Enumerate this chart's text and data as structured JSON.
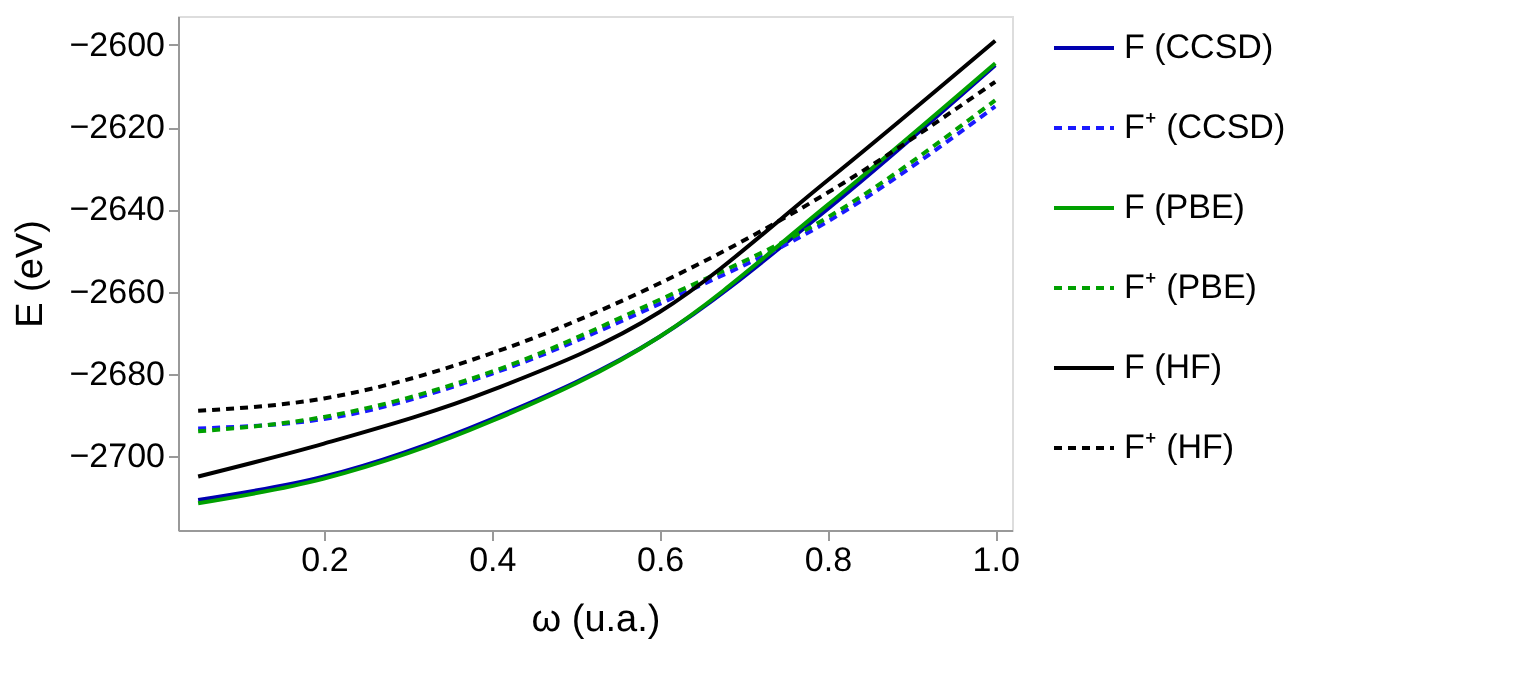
{
  "chart_data": {
    "type": "line",
    "xlabel": "ω (u.a.)",
    "ylabel": "E (eV)",
    "x": [
      0.05,
      0.2,
      0.4,
      0.6,
      0.8,
      1.0
    ],
    "xlim": [
      0.026,
      1.02
    ],
    "xticks": [
      {
        "value": 0.2,
        "label": "0.2"
      },
      {
        "value": 0.4,
        "label": "0.4"
      },
      {
        "value": 0.6,
        "label": "0.6"
      },
      {
        "value": 0.8,
        "label": "0.8"
      },
      {
        "value": 1.0,
        "label": "1.0"
      }
    ],
    "ylim": [
      -2718,
      -2593
    ],
    "yticks": [
      -2700,
      -2680,
      -2660,
      -2640,
      -2620,
      -2600
    ],
    "grid": false,
    "legend": "right",
    "marker": "none",
    "series": [
      {
        "name": "F (CCSD)",
        "color": "#0000b0",
        "line_style": "solid",
        "values": [
          -2710.7,
          -2705,
          -2691,
          -2671,
          -2640,
          -2605
        ]
      },
      {
        "name": "F⁺ (CCSD)",
        "color": "#1a1aff",
        "line_style": "dashed",
        "values": [
          -2693.3,
          -2691,
          -2680,
          -2663,
          -2643,
          -2615
        ]
      },
      {
        "name": "F (PBE)",
        "color": "#00a000",
        "line_style": "solid",
        "values": [
          -2711.5,
          -2705.5,
          -2691.5,
          -2671,
          -2639,
          -2604.5
        ]
      },
      {
        "name": "F⁺ (PBE)",
        "color": "#00a000",
        "line_style": "dashed",
        "values": [
          -2694,
          -2690.5,
          -2679.5,
          -2662,
          -2642,
          -2613.5
        ]
      },
      {
        "name": "F (HF)",
        "color": "#000000",
        "line_style": "solid",
        "values": [
          -2705,
          -2697,
          -2684,
          -2665,
          -2633,
          -2599
        ]
      },
      {
        "name": "F⁺ (HF)",
        "color": "#000000",
        "line_style": "dashed",
        "values": [
          -2689,
          -2686,
          -2675,
          -2658,
          -2636,
          -2609
        ]
      }
    ]
  }
}
